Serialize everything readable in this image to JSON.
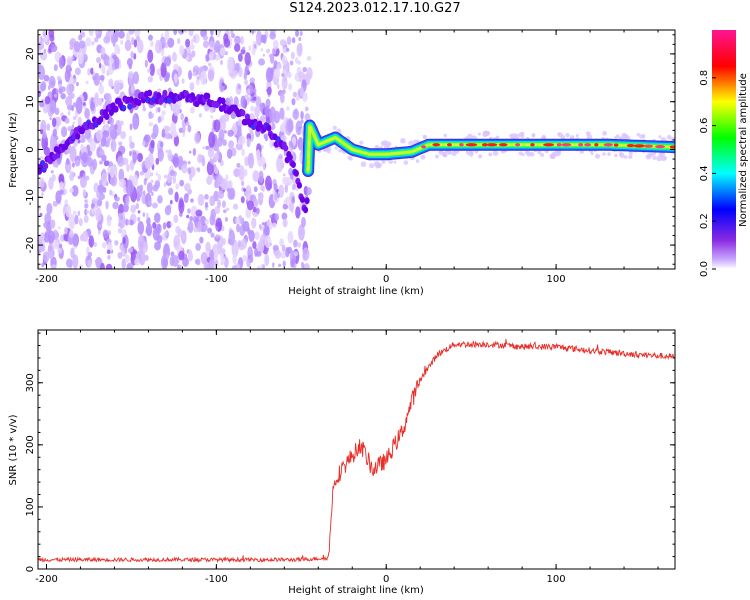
{
  "title": "S124.2023.012.17.10.G27",
  "chart_data": [
    {
      "type": "heatmap",
      "xlabel": "Height of straight line (km)",
      "ylabel": "Frequency (Hz)",
      "xlim": [
        -205,
        170
      ],
      "ylim": [
        -25,
        25
      ],
      "xticks": [
        -200,
        -100,
        0,
        100
      ],
      "yticks": [
        -20,
        -10,
        0,
        10,
        20
      ],
      "colorbar": {
        "label": "Normalized spectral amplitude",
        "range": [
          0,
          1
        ],
        "ticks": [
          0.0,
          0.2,
          0.4,
          0.6,
          0.8
        ],
        "colors": [
          "#ffffff",
          "#8a2be2",
          "#0000ff",
          "#00ffff",
          "#00ff00",
          "#ffff00",
          "#ff0000",
          "#ff1493"
        ]
      },
      "ridge": {
        "points": [
          {
            "x": -203,
            "y": -4
          },
          {
            "x": -190,
            "y": 1
          },
          {
            "x": -175,
            "y": 5
          },
          {
            "x": -160,
            "y": 9
          },
          {
            "x": -140,
            "y": 11
          },
          {
            "x": -120,
            "y": 11
          },
          {
            "x": -100,
            "y": 10
          },
          {
            "x": -85,
            "y": 7
          },
          {
            "x": -70,
            "y": 4
          },
          {
            "x": -60,
            "y": 0
          },
          {
            "x": -52,
            "y": -6
          },
          {
            "x": -47,
            "y": -14
          },
          {
            "x": -45,
            "y": 5
          },
          {
            "x": -40,
            "y": 1
          },
          {
            "x": -30,
            "y": 2.5
          },
          {
            "x": -20,
            "y": 0
          },
          {
            "x": -10,
            "y": -1
          },
          {
            "x": 0,
            "y": -1
          },
          {
            "x": 15,
            "y": -0.5
          },
          {
            "x": 25,
            "y": 1
          },
          {
            "x": 60,
            "y": 1
          },
          {
            "x": 100,
            "y": 1
          },
          {
            "x": 130,
            "y": 1
          },
          {
            "x": 170,
            "y": 0.5
          }
        ]
      }
    },
    {
      "type": "line",
      "xlabel": "Height of straight line (km)",
      "ylabel": "SNR (10 * v/v)",
      "xlim": [
        -205,
        170
      ],
      "ylim": [
        0,
        385
      ],
      "xticks": [
        -200,
        -100,
        0,
        100
      ],
      "yticks": [
        0,
        100,
        200,
        300
      ],
      "series": [
        {
          "color": "#e8302a",
          "points": [
            {
              "x": -205,
              "y": 15
            },
            {
              "x": -150,
              "y": 15
            },
            {
              "x": -100,
              "y": 15
            },
            {
              "x": -50,
              "y": 15
            },
            {
              "x": -34,
              "y": 18
            },
            {
              "x": -31,
              "y": 140
            },
            {
              "x": -25,
              "y": 165
            },
            {
              "x": -15,
              "y": 200
            },
            {
              "x": -8,
              "y": 160
            },
            {
              "x": 0,
              "y": 175
            },
            {
              "x": 10,
              "y": 225
            },
            {
              "x": 15,
              "y": 270
            },
            {
              "x": 20,
              "y": 305
            },
            {
              "x": 30,
              "y": 345
            },
            {
              "x": 40,
              "y": 362
            },
            {
              "x": 60,
              "y": 362
            },
            {
              "x": 80,
              "y": 358
            },
            {
              "x": 100,
              "y": 358
            },
            {
              "x": 120,
              "y": 352
            },
            {
              "x": 150,
              "y": 345
            },
            {
              "x": 170,
              "y": 342
            }
          ]
        }
      ]
    }
  ]
}
